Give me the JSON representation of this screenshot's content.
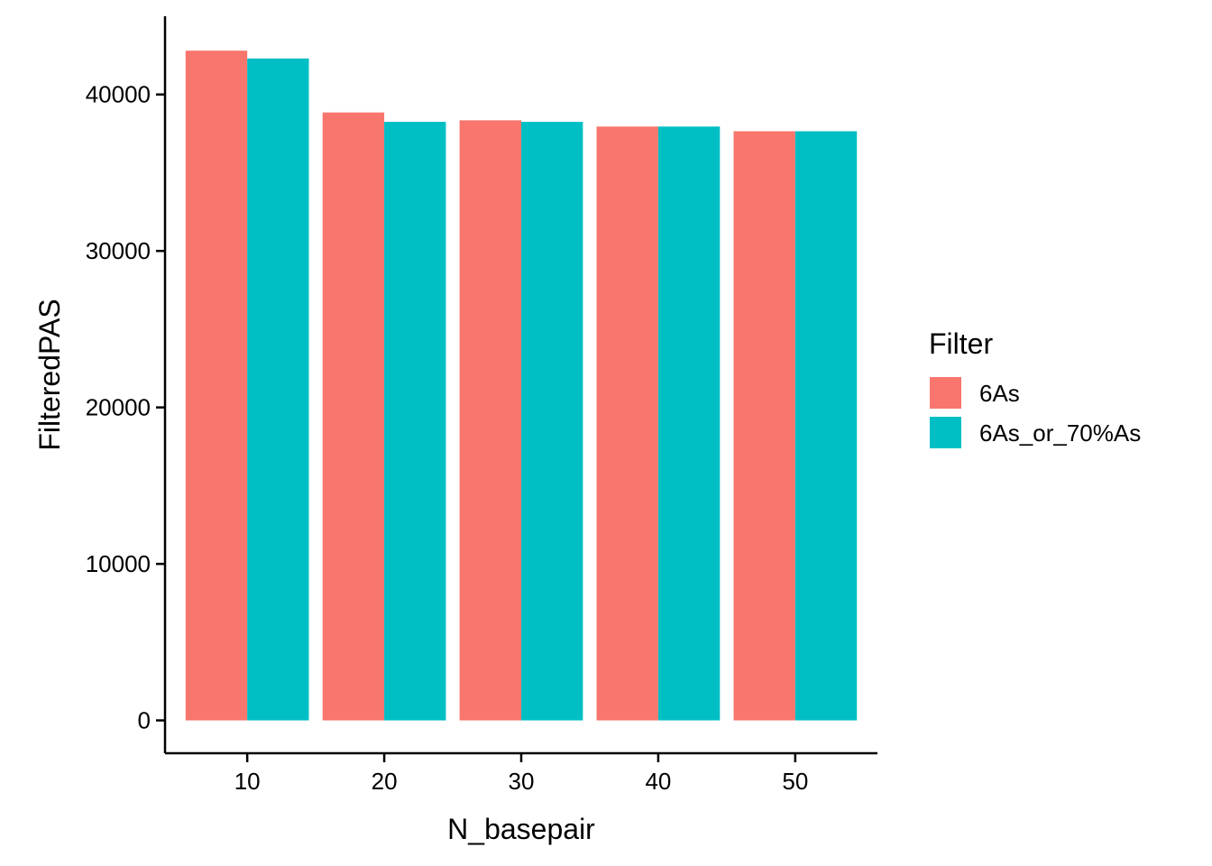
{
  "chart_data": {
    "type": "bar",
    "xlabel": "N_basepair",
    "ylabel": "FilteredPAS",
    "categories": [
      "10",
      "20",
      "30",
      "40",
      "50"
    ],
    "series": [
      {
        "name": "6As",
        "color": "#F8766D",
        "values": [
          42800,
          38850,
          38350,
          37950,
          37650
        ]
      },
      {
        "name": "6As_or_70%As",
        "color": "#00BFC4",
        "values": [
          42300,
          38250,
          38250,
          37950,
          37650
        ]
      }
    ],
    "ylim": [
      -2100,
      45000
    ],
    "yticks": [
      0,
      10000,
      20000,
      30000,
      40000
    ],
    "ytick_labels": [
      "0",
      "10000",
      "20000",
      "30000",
      "40000"
    ],
    "grid": false,
    "legend": {
      "title": "Filter",
      "placement": "right"
    }
  }
}
